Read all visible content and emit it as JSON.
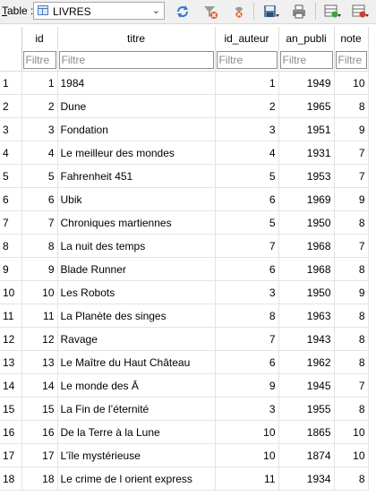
{
  "toolbar": {
    "table_label_prefix": "T",
    "table_label_rest": "able :",
    "selected_table": "LIVRES",
    "buttons": [
      "refresh-icon",
      "clear-filter-icon",
      "delete-filter-icon",
      "save-icon",
      "print-icon",
      "new-record-icon",
      "delete-record-icon"
    ]
  },
  "grid": {
    "columns": [
      "id",
      "titre",
      "id_auteur",
      "an_publi",
      "note"
    ],
    "filter_placeholder": "Filtre",
    "rows": [
      {
        "rownum": "1",
        "id": "1",
        "titre": "1984",
        "id_auteur": "1",
        "an_publi": "1949",
        "note": "10"
      },
      {
        "rownum": "2",
        "id": "2",
        "titre": "Dune",
        "id_auteur": "2",
        "an_publi": "1965",
        "note": "8"
      },
      {
        "rownum": "3",
        "id": "3",
        "titre": "Fondation",
        "id_auteur": "3",
        "an_publi": "1951",
        "note": "9"
      },
      {
        "rownum": "4",
        "id": "4",
        "titre": "Le meilleur des mondes",
        "id_auteur": "4",
        "an_publi": "1931",
        "note": "7"
      },
      {
        "rownum": "5",
        "id": "5",
        "titre": "Fahrenheit 451",
        "id_auteur": "5",
        "an_publi": "1953",
        "note": "7"
      },
      {
        "rownum": "6",
        "id": "6",
        "titre": "Ubik",
        "id_auteur": "6",
        "an_publi": "1969",
        "note": "9"
      },
      {
        "rownum": "7",
        "id": "7",
        "titre": "Chroniques martiennes",
        "id_auteur": "5",
        "an_publi": "1950",
        "note": "8"
      },
      {
        "rownum": "8",
        "id": "8",
        "titre": "La nuit des temps",
        "id_auteur": "7",
        "an_publi": "1968",
        "note": "7"
      },
      {
        "rownum": "9",
        "id": "9",
        "titre": "Blade Runner",
        "id_auteur": "6",
        "an_publi": "1968",
        "note": "8"
      },
      {
        "rownum": "10",
        "id": "10",
        "titre": "Les Robots",
        "id_auteur": "3",
        "an_publi": "1950",
        "note": "9"
      },
      {
        "rownum": "11",
        "id": "11",
        "titre": "La Planète des singes",
        "id_auteur": "8",
        "an_publi": "1963",
        "note": "8"
      },
      {
        "rownum": "12",
        "id": "12",
        "titre": "Ravage",
        "id_auteur": "7",
        "an_publi": "1943",
        "note": "8"
      },
      {
        "rownum": "13",
        "id": "13",
        "titre": "Le Maître du Haut Château",
        "id_auteur": "6",
        "an_publi": "1962",
        "note": "8"
      },
      {
        "rownum": "14",
        "id": "14",
        "titre": "Le monde des Ā",
        "id_auteur": "9",
        "an_publi": "1945",
        "note": "7"
      },
      {
        "rownum": "15",
        "id": "15",
        "titre": "La Fin de l’éternité",
        "id_auteur": "3",
        "an_publi": "1955",
        "note": "8"
      },
      {
        "rownum": "16",
        "id": "16",
        "titre": "De la Terre à la Lune",
        "id_auteur": "10",
        "an_publi": "1865",
        "note": "10"
      },
      {
        "rownum": "17",
        "id": "17",
        "titre": "L’île mystérieuse",
        "id_auteur": "10",
        "an_publi": "1874",
        "note": "10"
      },
      {
        "rownum": "18",
        "id": "18",
        "titre": "Le crime de l orient express",
        "id_auteur": "11",
        "an_publi": "1934",
        "note": "8"
      }
    ]
  }
}
